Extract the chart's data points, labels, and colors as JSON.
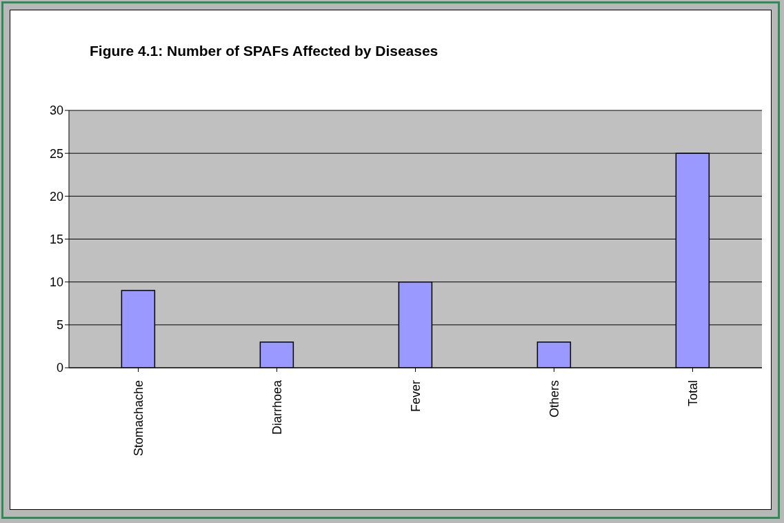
{
  "chart_data": {
    "type": "bar",
    "title": "Figure 4.1: Number of SPAFs Affected by Diseases",
    "categories": [
      "Stomachache",
      "Diarrhoea",
      "Fever",
      "Others",
      "Total"
    ],
    "values": [
      9,
      3,
      10,
      3,
      25
    ],
    "color": "#9999ff",
    "ylim": [
      0,
      30
    ],
    "yticks": [
      0,
      5,
      10,
      15,
      20,
      25,
      30
    ],
    "grid": "y",
    "legend": false
  }
}
